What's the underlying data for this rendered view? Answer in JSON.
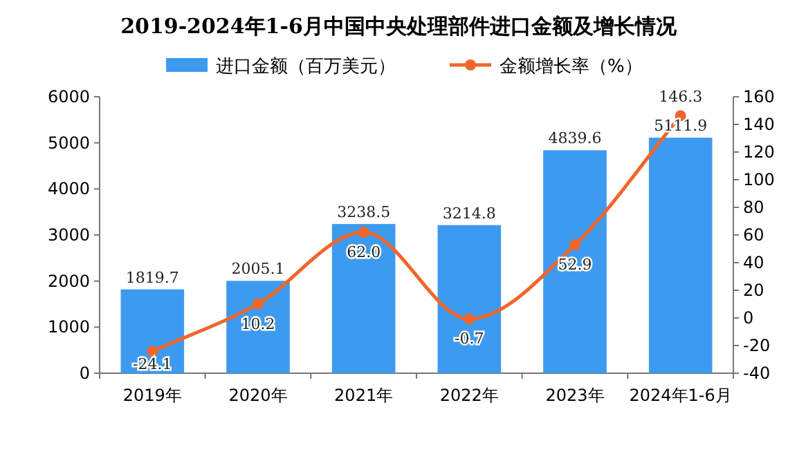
{
  "chart_data": {
    "type": "bar",
    "title": "2019-2024年1-6月中国中央处理部件进口金额及增长情况",
    "categories": [
      "2019年",
      "2020年",
      "2021年",
      "2022年",
      "2023年",
      "2024年1-6月"
    ],
    "series": [
      {
        "name": "进口金额（百万美元）",
        "color": "#3d9bef",
        "values": [
          1819.7,
          2005.1,
          3238.5,
          3214.8,
          4839.6,
          5111.9
        ]
      },
      {
        "name": "金额增长率（%）",
        "type": "line",
        "axis": "y2",
        "color": "#f0662a",
        "marker": "circle",
        "values": [
          -24.1,
          10.2,
          62.0,
          -0.7,
          52.9,
          146.3
        ],
        "value_labels": [
          "-24.1",
          "10.2",
          "62.0",
          "-0.7",
          "52.9",
          "146.3"
        ]
      }
    ],
    "ylim": [
      0,
      6000
    ],
    "yticks": [
      0,
      1000,
      2000,
      3000,
      4000,
      5000,
      6000
    ],
    "y2lim": [
      -40,
      160
    ],
    "y2ticks": [
      -40,
      -20,
      0,
      20,
      40,
      60,
      80,
      100,
      120,
      140,
      160
    ],
    "data_labels": true,
    "legend": "top",
    "grid": false
  }
}
